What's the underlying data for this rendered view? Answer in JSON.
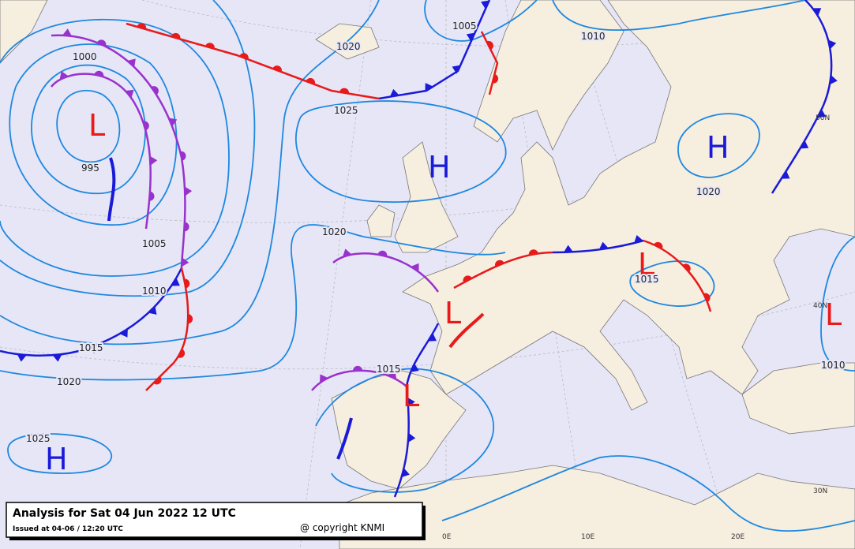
{
  "map": {
    "pressure_centers": [
      "L",
      "H",
      "H",
      "L",
      "L",
      "L",
      "L",
      "H"
    ],
    "isobar_labels": [
      "1000",
      "995",
      "1005",
      "1010",
      "1015",
      "1020",
      "1025",
      "1020",
      "1025",
      "1020",
      "1005",
      "1010",
      "1020",
      "1015",
      "1015",
      "1010"
    ],
    "graticule_labels": [
      "0E",
      "10E",
      "20E",
      "30N",
      "40N",
      "50N"
    ]
  },
  "legend_box": {
    "title": "Analysis for Sat 04 Jun 2022 12 UTC",
    "issued": "Issued at 04-06 / 12:20 UTC",
    "copyright": "@ copyright KNMI"
  }
}
